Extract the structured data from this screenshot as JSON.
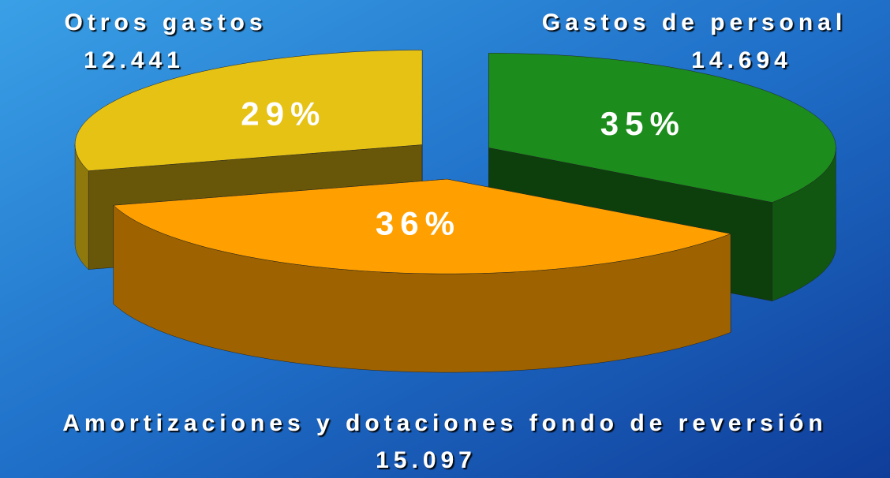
{
  "chart_data": {
    "type": "pie3d",
    "categories": [
      "Gastos de personal",
      "Amortizaciones y dotaciones fondo de reversión",
      "Otros gastos"
    ],
    "values": [
      14694,
      15097,
      12441
    ],
    "value_labels": [
      "14.694",
      "15.097",
      "12.441"
    ],
    "percent_labels": [
      "35%",
      "36%",
      "29%"
    ],
    "colors": [
      "#1c8c1c",
      "#ffa000",
      "#e6c214"
    ]
  }
}
